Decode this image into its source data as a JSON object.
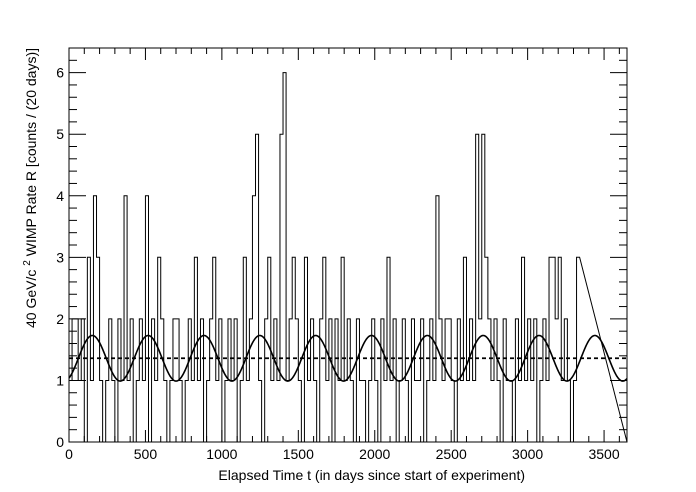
{
  "chart_data": {
    "type": "line",
    "xlabel": "Elapsed Time t  (in days since start of experiment)",
    "ylabel": {
      "pre": "40 GeV/c",
      "sup": "2",
      "post": " WIMP Rate R  [counts / (20 days)]"
    },
    "xlim": [
      0,
      3650
    ],
    "ylim": [
      0,
      6.4
    ],
    "x_ticks": [
      0,
      500,
      1000,
      1500,
      2000,
      2500,
      3000,
      3500
    ],
    "x_tick_labels": [
      "0",
      "500",
      "1000",
      "1500",
      "2000",
      "2500",
      "3000",
      "3500"
    ],
    "y_ticks": [
      0,
      1,
      2,
      3,
      4,
      5,
      6
    ],
    "y_tick_labels": [
      "0",
      "1",
      "2",
      "3",
      "4",
      "5",
      "6"
    ],
    "grid": false,
    "histogram": {
      "bin_width_days": 20,
      "first_bin_start": 0,
      "counts": [
        1,
        2,
        2,
        1,
        2,
        0,
        3,
        1,
        4,
        3,
        1,
        0,
        1,
        2,
        1,
        0,
        2,
        1,
        4,
        1,
        2,
        0,
        1,
        2,
        1,
        4,
        0,
        2,
        1,
        3,
        2,
        1,
        0,
        1,
        2,
        2,
        1,
        0,
        1,
        2,
        1,
        3,
        1,
        2,
        0,
        1,
        2,
        3,
        1,
        2,
        0,
        1,
        2,
        1,
        2,
        0,
        1,
        3,
        1,
        2,
        4,
        5,
        1,
        0,
        2,
        3,
        1,
        2,
        1,
        5,
        6,
        1,
        2,
        3,
        2,
        1,
        0,
        3,
        1,
        2,
        1,
        0,
        2,
        3,
        1,
        2,
        0,
        2,
        1,
        3,
        1,
        2,
        1,
        0,
        2,
        1,
        1,
        0,
        1,
        2,
        1,
        0,
        2,
        1,
        3,
        1,
        2,
        0,
        1,
        2,
        1,
        0,
        2,
        1,
        1,
        2,
        0,
        1,
        2,
        1,
        4,
        2,
        1,
        2,
        2,
        1,
        0,
        2,
        1,
        3,
        1,
        2,
        1,
        5,
        2,
        5,
        3,
        2,
        1,
        2,
        1,
        0,
        2,
        1,
        1,
        0,
        2,
        1,
        3,
        1,
        2,
        1,
        2,
        0,
        1,
        2,
        1,
        3,
        3,
        2,
        3,
        1,
        2,
        1,
        0,
        1,
        3
      ]
    },
    "series": [
      {
        "style": "solid",
        "function": "modulation",
        "baseline": 1.36,
        "amplitude": 0.37,
        "period_days": 365.25,
        "phase_days": 152.5
      },
      {
        "style": "dashed",
        "function": "constant",
        "value": 1.36
      }
    ]
  }
}
